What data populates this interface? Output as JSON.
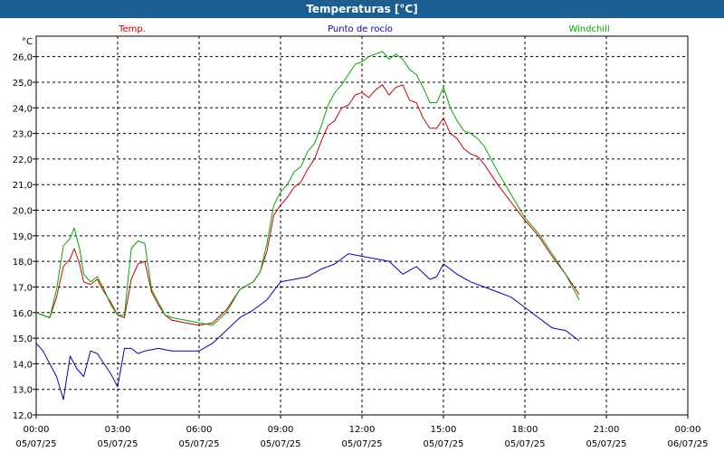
{
  "window": {
    "title": "Temperaturas [°C]"
  },
  "chart_data": {
    "type": "line",
    "title": "Temperaturas [°C]",
    "ylabel": "°C",
    "ylim": [
      12.0,
      26.8
    ],
    "y_ticks": [
      "12,0",
      "13,0",
      "14,0",
      "15,0",
      "16,0",
      "17,0",
      "18,0",
      "19,0",
      "20,0",
      "21,0",
      "22,0",
      "23,0",
      "24,0",
      "25,0",
      "26,0"
    ],
    "x_range_hours": [
      0,
      24
    ],
    "x_ticks": [
      {
        "time": "00:00",
        "date": "05/07/25"
      },
      {
        "time": "03:00",
        "date": "05/07/25"
      },
      {
        "time": "06:00",
        "date": "05/07/25"
      },
      {
        "time": "09:00",
        "date": "05/07/25"
      },
      {
        "time": "12:00",
        "date": "05/07/25"
      },
      {
        "time": "15:00",
        "date": "05/07/25"
      },
      {
        "time": "18:00",
        "date": "05/07/25"
      },
      {
        "time": "21:00",
        "date": "05/07/25"
      },
      {
        "time": "00:00",
        "date": "06/07/25"
      }
    ],
    "grid": true,
    "legend_placement": "top",
    "series": [
      {
        "name": "Temp.",
        "color": "#cc0000",
        "x": [
          0,
          0.25,
          0.5,
          0.75,
          1.0,
          1.25,
          1.4,
          1.6,
          1.75,
          2.0,
          2.25,
          2.5,
          2.75,
          3.0,
          3.25,
          3.5,
          3.75,
          4.0,
          4.25,
          4.5,
          4.75,
          5.0,
          5.5,
          6.0,
          6.5,
          7.0,
          7.5,
          8.0,
          8.25,
          8.5,
          8.75,
          9.0,
          9.25,
          9.5,
          9.75,
          10.0,
          10.25,
          10.5,
          10.75,
          11.0,
          11.25,
          11.5,
          11.75,
          12.0,
          12.25,
          12.5,
          12.75,
          13.0,
          13.25,
          13.5,
          13.75,
          14.0,
          14.25,
          14.5,
          14.75,
          15.0,
          15.25,
          15.5,
          15.75,
          16.0,
          16.25,
          16.5,
          17.0,
          17.5,
          18.0,
          18.5,
          19.0,
          19.5,
          20.0
        ],
        "y": [
          16.0,
          15.9,
          15.8,
          16.6,
          17.8,
          18.1,
          18.5,
          17.9,
          17.2,
          17.1,
          17.3,
          16.8,
          16.4,
          15.9,
          15.8,
          17.3,
          17.9,
          18.0,
          16.8,
          16.3,
          15.9,
          15.7,
          15.6,
          15.5,
          15.6,
          16.1,
          16.9,
          17.2,
          17.6,
          18.4,
          19.8,
          20.2,
          20.5,
          20.9,
          21.1,
          21.6,
          22.0,
          22.7,
          23.3,
          23.5,
          24.0,
          24.1,
          24.5,
          24.6,
          24.4,
          24.7,
          24.9,
          24.5,
          24.8,
          24.9,
          24.3,
          24.2,
          23.6,
          23.2,
          23.2,
          23.6,
          23.0,
          22.8,
          22.4,
          22.2,
          22.1,
          21.8,
          21.0,
          20.3,
          19.6,
          19.0,
          18.2,
          17.5,
          16.7
        ]
      },
      {
        "name": "Punto de rocío",
        "color": "#0000cc",
        "x": [
          0,
          0.25,
          0.5,
          0.75,
          1.0,
          1.25,
          1.5,
          1.75,
          2.0,
          2.25,
          2.5,
          2.75,
          3.0,
          3.25,
          3.5,
          3.75,
          4.0,
          4.5,
          5.0,
          5.5,
          6.0,
          6.5,
          7.0,
          7.5,
          8.0,
          8.5,
          9.0,
          9.5,
          10.0,
          10.5,
          11.0,
          11.5,
          12.0,
          12.5,
          13.0,
          13.5,
          14.0,
          14.5,
          14.75,
          15.0,
          15.5,
          16.0,
          16.5,
          17.0,
          17.5,
          18.0,
          18.5,
          19.0,
          19.5,
          20.0
        ],
        "y": [
          14.8,
          14.5,
          14.0,
          13.5,
          12.6,
          14.3,
          13.8,
          13.5,
          14.5,
          14.4,
          14.0,
          13.6,
          13.1,
          14.6,
          14.6,
          14.4,
          14.5,
          14.6,
          14.5,
          14.5,
          14.5,
          14.8,
          15.3,
          15.8,
          16.1,
          16.5,
          17.2,
          17.3,
          17.4,
          17.7,
          17.9,
          18.3,
          18.2,
          18.1,
          18.0,
          17.5,
          17.8,
          17.3,
          17.4,
          17.9,
          17.5,
          17.2,
          17.0,
          16.8,
          16.6,
          16.2,
          15.8,
          15.4,
          15.3,
          14.9
        ]
      },
      {
        "name": "Windchill",
        "color": "#00aa00",
        "x": [
          0,
          0.25,
          0.5,
          0.75,
          1.0,
          1.25,
          1.4,
          1.6,
          1.75,
          2.0,
          2.25,
          2.5,
          2.75,
          3.0,
          3.25,
          3.5,
          3.75,
          4.0,
          4.25,
          4.5,
          4.75,
          5.0,
          5.5,
          6.0,
          6.5,
          7.0,
          7.5,
          8.0,
          8.25,
          8.5,
          8.75,
          9.0,
          9.25,
          9.5,
          9.75,
          10.0,
          10.25,
          10.5,
          10.75,
          11.0,
          11.25,
          11.5,
          11.75,
          12.0,
          12.25,
          12.5,
          12.75,
          13.0,
          13.25,
          13.5,
          13.75,
          14.0,
          14.25,
          14.5,
          14.75,
          15.0,
          15.25,
          15.5,
          15.75,
          16.0,
          16.25,
          16.5,
          17.0,
          17.5,
          18.0,
          18.5,
          19.0,
          19.5,
          20.0
        ],
        "y": [
          16.0,
          15.9,
          15.8,
          16.9,
          18.6,
          18.9,
          19.3,
          18.5,
          17.5,
          17.2,
          17.4,
          16.9,
          16.3,
          15.9,
          15.9,
          18.5,
          18.8,
          18.7,
          16.9,
          16.4,
          15.9,
          15.8,
          15.7,
          15.6,
          15.5,
          16.0,
          16.9,
          17.2,
          17.6,
          18.7,
          20.2,
          20.7,
          21.0,
          21.5,
          21.7,
          22.3,
          22.6,
          23.3,
          24.1,
          24.6,
          24.9,
          25.3,
          25.7,
          25.8,
          26.0,
          26.1,
          26.2,
          25.9,
          26.1,
          25.9,
          25.5,
          25.3,
          24.8,
          24.2,
          24.2,
          24.8,
          24.0,
          23.5,
          23.1,
          23.0,
          22.8,
          22.5,
          21.5,
          20.6,
          19.7,
          19.1,
          18.3,
          17.5,
          16.5
        ]
      }
    ]
  }
}
